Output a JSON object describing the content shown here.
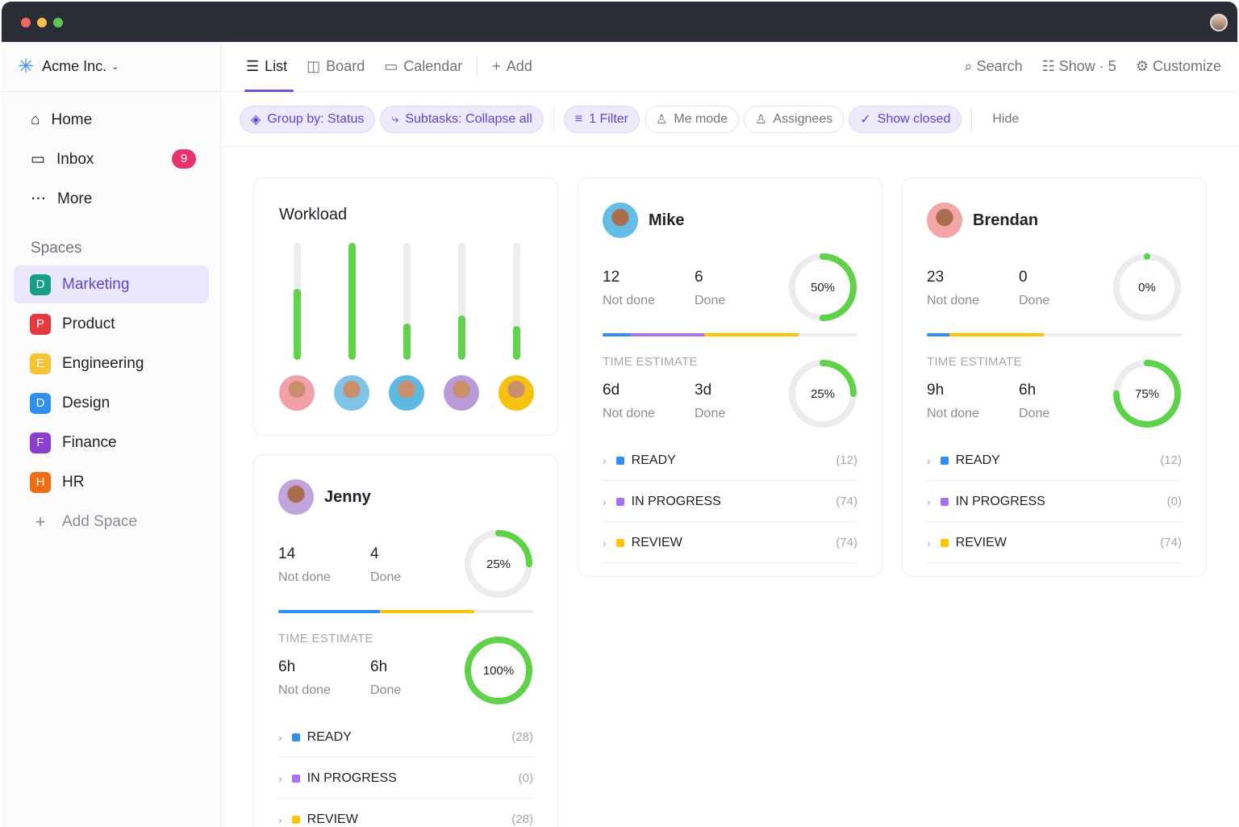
{
  "workspace": {
    "name": "Acme Inc.",
    "logo_color": "#3b8df0"
  },
  "nav": [
    {
      "label": "Home",
      "icon": "home-icon"
    },
    {
      "label": "Inbox",
      "icon": "inbox-icon",
      "badge": "9"
    },
    {
      "label": "More",
      "icon": "more-icon"
    }
  ],
  "spaces_title": "Spaces",
  "spaces": [
    {
      "letter": "D",
      "label": "Marketing",
      "color": "#16a085",
      "active": true
    },
    {
      "letter": "P",
      "label": "Product",
      "color": "#e5393f"
    },
    {
      "letter": "E",
      "label": "Engineering",
      "color": "#f7c233"
    },
    {
      "letter": "D",
      "label": "Design",
      "color": "#2f8ef0"
    },
    {
      "letter": "F",
      "label": "Finance",
      "color": "#8a3fd1"
    },
    {
      "letter": "H",
      "label": "HR",
      "color": "#f06d12"
    }
  ],
  "add_space": "Add Space",
  "views": {
    "list": "List",
    "board": "Board",
    "calendar": "Calendar",
    "add": "Add",
    "search": "Search",
    "show": "Show · 5",
    "customize": "Customize"
  },
  "filters": {
    "group": "Group by: Status",
    "subtasks": "Subtasks: Collapse all",
    "filter": "1 Filter",
    "me": "Me mode",
    "assignees": "Assignees",
    "closed": "Show closed",
    "hide": "Hide"
  },
  "workload": {
    "title": "Workload",
    "levels": [
      0.61,
      1.0,
      0.31,
      0.38,
      0.29
    ]
  },
  "labels": {
    "not_done": "Not done",
    "done": "Done",
    "time_estimate": "TIME ESTIMATE"
  },
  "people": [
    {
      "name": "Mike",
      "not_done": "12",
      "done": "6",
      "pct": 50,
      "pct_label": "50%",
      "te_not_done": "6d",
      "te_done": "3d",
      "te_pct": 25,
      "te_pct_label": "25%",
      "bar": [
        {
          "c": "#2f8ef0",
          "v": 11
        },
        {
          "c": "#a970f5",
          "v": 29
        },
        {
          "c": "#ffc400",
          "v": 37
        }
      ],
      "statuses": [
        {
          "label": "READY",
          "count": "(12)",
          "color": "#2f8ef0"
        },
        {
          "label": "IN PROGRESS",
          "count": "(74)",
          "color": "#a970f5"
        },
        {
          "label": "REVIEW",
          "count": "(74)",
          "color": "#ffc400"
        }
      ]
    },
    {
      "name": "Brendan",
      "not_done": "23",
      "done": "0",
      "pct": 0,
      "pct_label": "0%",
      "te_not_done": "9h",
      "te_done": "6h",
      "te_pct": 75,
      "te_pct_label": "75%",
      "bar": [
        {
          "c": "#2f8ef0",
          "v": 9
        },
        {
          "c": "#ffc400",
          "v": 37
        }
      ],
      "statuses": [
        {
          "label": "READY",
          "count": "(12)",
          "color": "#2f8ef0"
        },
        {
          "label": "IN PROGRESS",
          "count": "(0)",
          "color": "#a970f5"
        },
        {
          "label": "REVIEW",
          "count": "(74)",
          "color": "#ffc400"
        }
      ]
    },
    {
      "name": "Jenny",
      "not_done": "14",
      "done": "4",
      "pct": 25,
      "pct_label": "25%",
      "te_not_done": "6h",
      "te_done": "6h",
      "te_pct": 100,
      "te_pct_label": "100%",
      "bar": [
        {
          "c": "#2f8ef0",
          "v": 40
        },
        {
          "c": "#ffc400",
          "v": 37
        }
      ],
      "statuses": [
        {
          "label": "READY",
          "count": "(28)",
          "color": "#2f8ef0"
        },
        {
          "label": "IN PROGRESS",
          "count": "(0)",
          "color": "#a970f5"
        },
        {
          "label": "REVIEW",
          "count": "(28)",
          "color": "#ffc400"
        }
      ]
    }
  ]
}
